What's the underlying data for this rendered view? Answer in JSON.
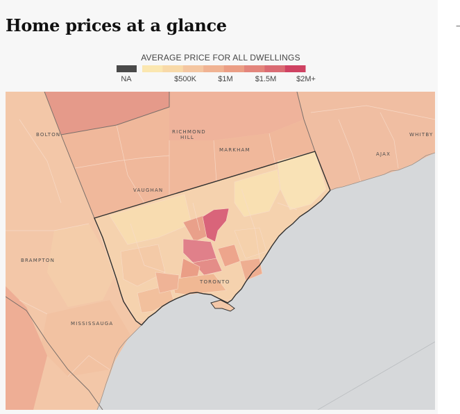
{
  "title": "Home prices at a glance",
  "edge_mark": "—",
  "legend": {
    "title": "AVERAGE PRICE FOR ALL DWELLINGS",
    "na_label": "NA",
    "na_color": "#4a4a4a",
    "bins": [
      "#fbe7b0",
      "#f8d9a8",
      "#f4c6a1",
      "#f0b393",
      "#eb9e85",
      "#e3857c",
      "#da6b73",
      "#cf4262"
    ],
    "tick_labels": [
      "$500K",
      "$1M",
      "$1.5M",
      "$2M+"
    ]
  },
  "map": {
    "water_color": "#d6d8da",
    "cities": {
      "bolton": "BOLTON",
      "richmond_hill_1": "RICHMOND",
      "richmond_hill_2": "HILL",
      "markham": "MARKHAM",
      "whitby": "WHITBY",
      "ajax": "AJAX",
      "vaughan": "VAUGHAN",
      "brampton": "BRAMPTON",
      "toronto": "TORONTO",
      "mississauga": "MISSISSAUGA"
    }
  }
}
